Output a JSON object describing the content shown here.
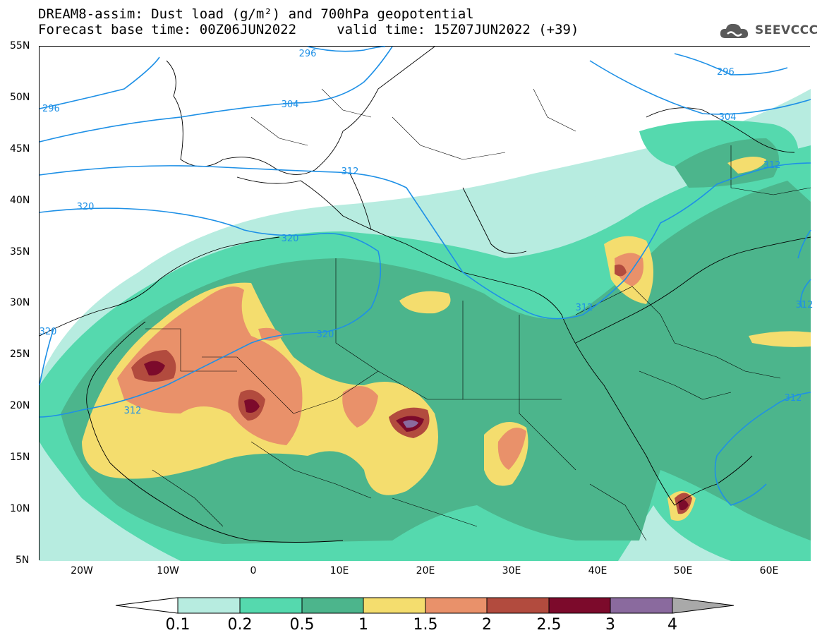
{
  "header": {
    "title_line1": "DREAM8-assim: Dust load (g/m²) and 700hPa geopotential",
    "title_line2": "Forecast base time: 00Z06JUN2022     valid time: 15Z07JUN2022 (+39)",
    "logo_text": "SEEVCCC"
  },
  "map": {
    "lat_labels": [
      "55N",
      "50N",
      "45N",
      "40N",
      "35N",
      "30N",
      "25N",
      "20N",
      "15N",
      "10N",
      "5N"
    ],
    "lon_labels": [
      "20W",
      "10W",
      "0",
      "10E",
      "20E",
      "30E",
      "40E",
      "50E",
      "60E"
    ],
    "contour_labels": [
      "296",
      "296",
      "296",
      "304",
      "304",
      "312",
      "312",
      "312",
      "312",
      "320",
      "320",
      "320",
      "320",
      "312",
      "312"
    ]
  },
  "colorbar": {
    "labels": [
      "0.1",
      "0.2",
      "0.5",
      "1",
      "1.5",
      "2",
      "2.5",
      "3",
      "4"
    ],
    "colors": [
      "#ffffff",
      "#b7ece0",
      "#55d9ae",
      "#4cb58c",
      "#f4dd6e",
      "#e9916a",
      "#b24b3e",
      "#7c0a2b",
      "#8a6a9e",
      "#a9a9a9"
    ]
  },
  "colors": {
    "contour": "#1e90e6",
    "land_outline": "#000000"
  }
}
